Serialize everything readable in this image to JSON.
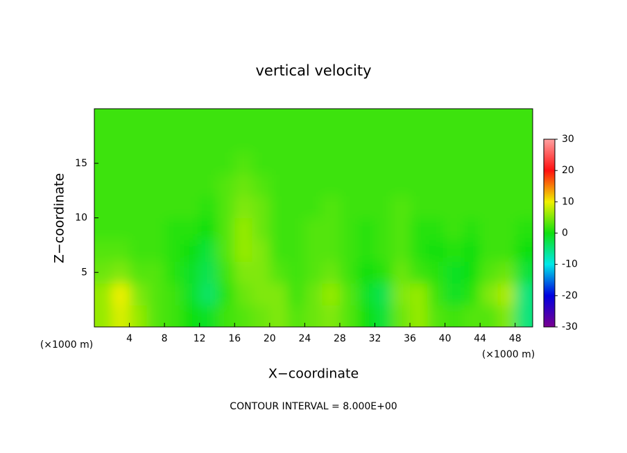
{
  "chart_data": {
    "type": "heatmap",
    "title": "vertical velocity",
    "x_label": "X−coordinate",
    "y_label": "Z−coordinate",
    "x_unit": "(×1000 m)",
    "y_unit": "(×1000 m)",
    "footer": "CONTOUR INTERVAL = 8.000E+00",
    "xlim": [
      0,
      50
    ],
    "ylim": [
      0,
      20
    ],
    "xticks": [
      4,
      8,
      12,
      16,
      20,
      24,
      28,
      32,
      36,
      40,
      44,
      48
    ],
    "yticks": [
      5,
      10,
      15
    ],
    "x": [
      1,
      3,
      5,
      7,
      9,
      11,
      13,
      15,
      17,
      19,
      21,
      23,
      25,
      27,
      29,
      31,
      33,
      35,
      37,
      39,
      41,
      43,
      45,
      47,
      49
    ],
    "y": [
      1,
      3,
      5,
      7,
      9,
      11,
      13,
      15,
      17,
      19
    ],
    "values": [
      [
        6,
        9,
        6,
        3,
        2,
        0,
        -1,
        2,
        3,
        4,
        5,
        3,
        4,
        5,
        3,
        0,
        -2,
        4,
        6,
        3,
        2,
        3,
        3,
        5,
        -5
      ],
      [
        6,
        10,
        5,
        3,
        2,
        -1,
        -4,
        1,
        4,
        5,
        5,
        2,
        4,
        6,
        3,
        -1,
        -3,
        5,
        6,
        2,
        -1,
        1,
        5,
        7,
        -5
      ],
      [
        4,
        5,
        3,
        3,
        1,
        -1,
        -3,
        2,
        5,
        5,
        3,
        2,
        3,
        4,
        2,
        0,
        1,
        4,
        2,
        1,
        -1,
        0,
        3,
        4,
        -2
      ],
      [
        3,
        3,
        2,
        2,
        1,
        0,
        -2,
        3,
        6,
        5,
        2,
        2,
        3,
        3,
        2,
        1,
        2,
        3,
        1,
        0,
        1,
        0,
        2,
        2,
        0
      ],
      [
        2,
        2,
        2,
        2,
        1,
        1,
        0,
        3,
        6,
        4,
        2,
        2,
        3,
        3,
        2,
        1,
        2,
        3,
        1,
        1,
        2,
        1,
        2,
        2,
        1
      ],
      [
        2,
        2,
        2,
        2,
        2,
        2,
        1,
        3,
        5,
        4,
        2,
        2,
        2,
        3,
        2,
        2,
        2,
        3,
        2,
        2,
        2,
        2,
        2,
        2,
        2
      ],
      [
        2,
        2,
        2,
        2,
        2,
        2,
        2,
        3,
        4,
        3,
        2,
        2,
        2,
        2,
        2,
        2,
        2,
        2,
        2,
        2,
        2,
        2,
        2,
        2,
        2
      ],
      [
        2,
        2,
        2,
        2,
        2,
        2,
        2,
        2,
        3,
        2,
        2,
        2,
        2,
        2,
        2,
        2,
        2,
        2,
        2,
        2,
        2,
        2,
        2,
        2,
        2
      ],
      [
        2,
        2,
        2,
        2,
        2,
        2,
        2,
        2,
        2,
        2,
        2,
        2,
        2,
        2,
        2,
        2,
        2,
        2,
        2,
        2,
        2,
        2,
        2,
        2,
        2
      ],
      [
        2,
        2,
        2,
        2,
        2,
        2,
        2,
        2,
        2,
        2,
        2,
        2,
        2,
        2,
        2,
        2,
        2,
        2,
        2,
        2,
        2,
        2,
        2,
        2,
        2
      ]
    ],
    "colorbar_lim": [
      -30,
      30
    ],
    "colorbar_ticks": [
      30,
      20,
      10,
      0,
      -10,
      -20,
      -30
    ],
    "colormap": [
      "#7a0090",
      "#0000e0",
      "#00e8e8",
      "#10e010",
      "#f0f000",
      "#ff1010",
      "#ffa0a0"
    ]
  }
}
